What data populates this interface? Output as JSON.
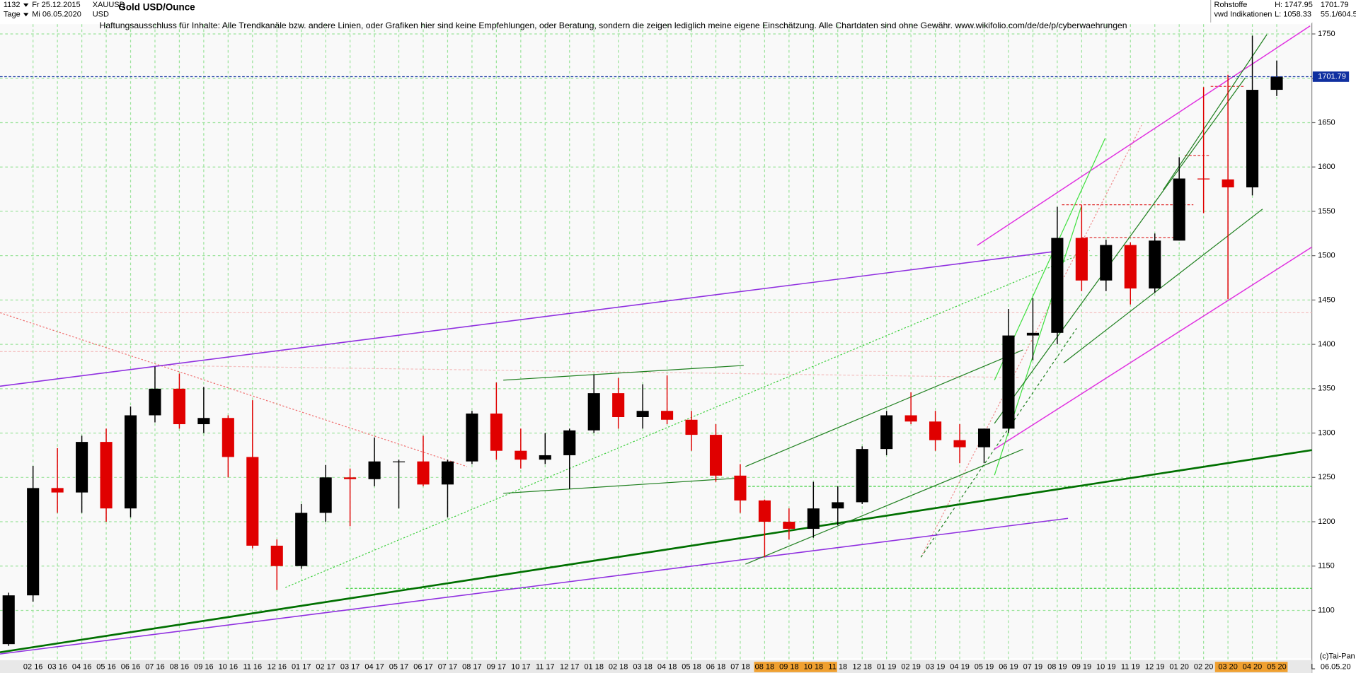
{
  "header": {
    "count": "1132",
    "period": "Tage",
    "date_from": "Fr 25.12.2015",
    "date_to": "Mi 06.05.2020",
    "symbol": "XAUUSD",
    "currency": "USD",
    "group": "Rohstoffe",
    "source": "vwd Indikationen",
    "high": "H: 1747.95",
    "low": "L: 1058.33",
    "ratio": "55.1/604.5",
    "copyright": "(c)Tai-Pan",
    "scale_mode": "L",
    "last_date": "06.05.20"
  },
  "chart_data": {
    "type": "candlestick",
    "title": "Gold USD/Ounce",
    "subtitle": "Haftungsausschluss für Inhalte: Alle Trendkanäle bzw. andere Linien, oder Grafiken hier sind keine Empfehlungen, oder Beratung, sondern die zeigen lediglich meine eigene Einschätzung. Alle Chartdaten sind ohne Gewähr.  www.wikifolio.com/de/de/p/cyberwaehrungen",
    "categories": [
      null,
      "02 16",
      "03 16",
      "04 16",
      "05 16",
      "06 16",
      "07 16",
      "08 16",
      "09 16",
      "10 16",
      "11 16",
      "12 16",
      "01 17",
      "02 17",
      "03 17",
      "04 17",
      "05 17",
      "06 17",
      "07 17",
      "08 17",
      "09 17",
      "10 17",
      "11 17",
      "12 17",
      "01 18",
      "02 18",
      "03 18",
      "04 18",
      "05 18",
      "06 18",
      "07 18",
      "08 18",
      "09 18",
      "10 18",
      "11 18",
      "12 18",
      "01 19",
      "02 19",
      "03 19",
      "04 19",
      "05 19",
      "06 19",
      "07 19",
      "08 19",
      "09 19",
      "10 19",
      "11 19",
      "12 19",
      "01 20",
      "02 20",
      "03 20",
      "04 20",
      "05 20"
    ],
    "open": [
      1062,
      1117,
      1238,
      1233,
      1290,
      1215,
      1320,
      1350,
      1310,
      1317,
      1273,
      1173,
      1150,
      1210,
      1250,
      1248,
      1268,
      1268,
      1242,
      1268,
      1322,
      1280,
      1270,
      1275,
      1303,
      1345,
      1318,
      1325,
      1315,
      1298,
      1252,
      1224,
      1200,
      1192,
      1215,
      1222,
      1282,
      1320,
      1313,
      1292,
      1284,
      1305,
      1410,
      1413,
      1520,
      1472,
      1512,
      1463,
      1517,
      1587,
      1586,
      1577,
      1687
    ],
    "high": [
      1120,
      1263,
      1283,
      1297,
      1305,
      1330,
      1375,
      1367,
      1352,
      1320,
      1337,
      1180,
      1220,
      1264,
      1260,
      1295,
      1270,
      1297,
      1270,
      1325,
      1357,
      1305,
      1300,
      1305,
      1366,
      1362,
      1355,
      1365,
      1325,
      1310,
      1265,
      1225,
      1215,
      1245,
      1240,
      1285,
      1325,
      1346,
      1325,
      1310,
      1305,
      1440,
      1452,
      1555,
      1557,
      1518,
      1515,
      1525,
      1611,
      1690,
      1704,
      1748,
      1720
    ],
    "low": [
      1060,
      1110,
      1210,
      1210,
      1200,
      1205,
      1312,
      1305,
      1300,
      1250,
      1170,
      1123,
      1147,
      1200,
      1195,
      1240,
      1215,
      1240,
      1205,
      1265,
      1270,
      1260,
      1265,
      1237,
      1300,
      1305,
      1305,
      1310,
      1280,
      1245,
      1210,
      1160,
      1180,
      1182,
      1196,
      1220,
      1275,
      1310,
      1280,
      1266,
      1266,
      1300,
      1382,
      1400,
      1460,
      1460,
      1445,
      1458,
      1517,
      1548,
      1451,
      1568,
      1680
    ],
    "close": [
      1117,
      1238,
      1233,
      1290,
      1215,
      1320,
      1350,
      1310,
      1317,
      1273,
      1173,
      1150,
      1210,
      1250,
      1248,
      1268,
      1268,
      1242,
      1268,
      1322,
      1280,
      1270,
      1275,
      1303,
      1345,
      1318,
      1325,
      1315,
      1298,
      1252,
      1224,
      1200,
      1192,
      1215,
      1222,
      1282,
      1320,
      1313,
      1292,
      1284,
      1305,
      1410,
      1413,
      1520,
      1472,
      1512,
      1463,
      1517,
      1587,
      1586,
      1577,
      1687,
      1702
    ],
    "up_color": "#000000",
    "down_color": "#e00000",
    "last": 1701.79,
    "last_label": "1701.79",
    "ylim": [
      1046,
      1761
    ],
    "yticks": [
      1100,
      1150,
      1200,
      1250,
      1300,
      1350,
      1400,
      1450,
      1500,
      1550,
      1600,
      1650,
      1700,
      1750
    ],
    "grid": true
  }
}
